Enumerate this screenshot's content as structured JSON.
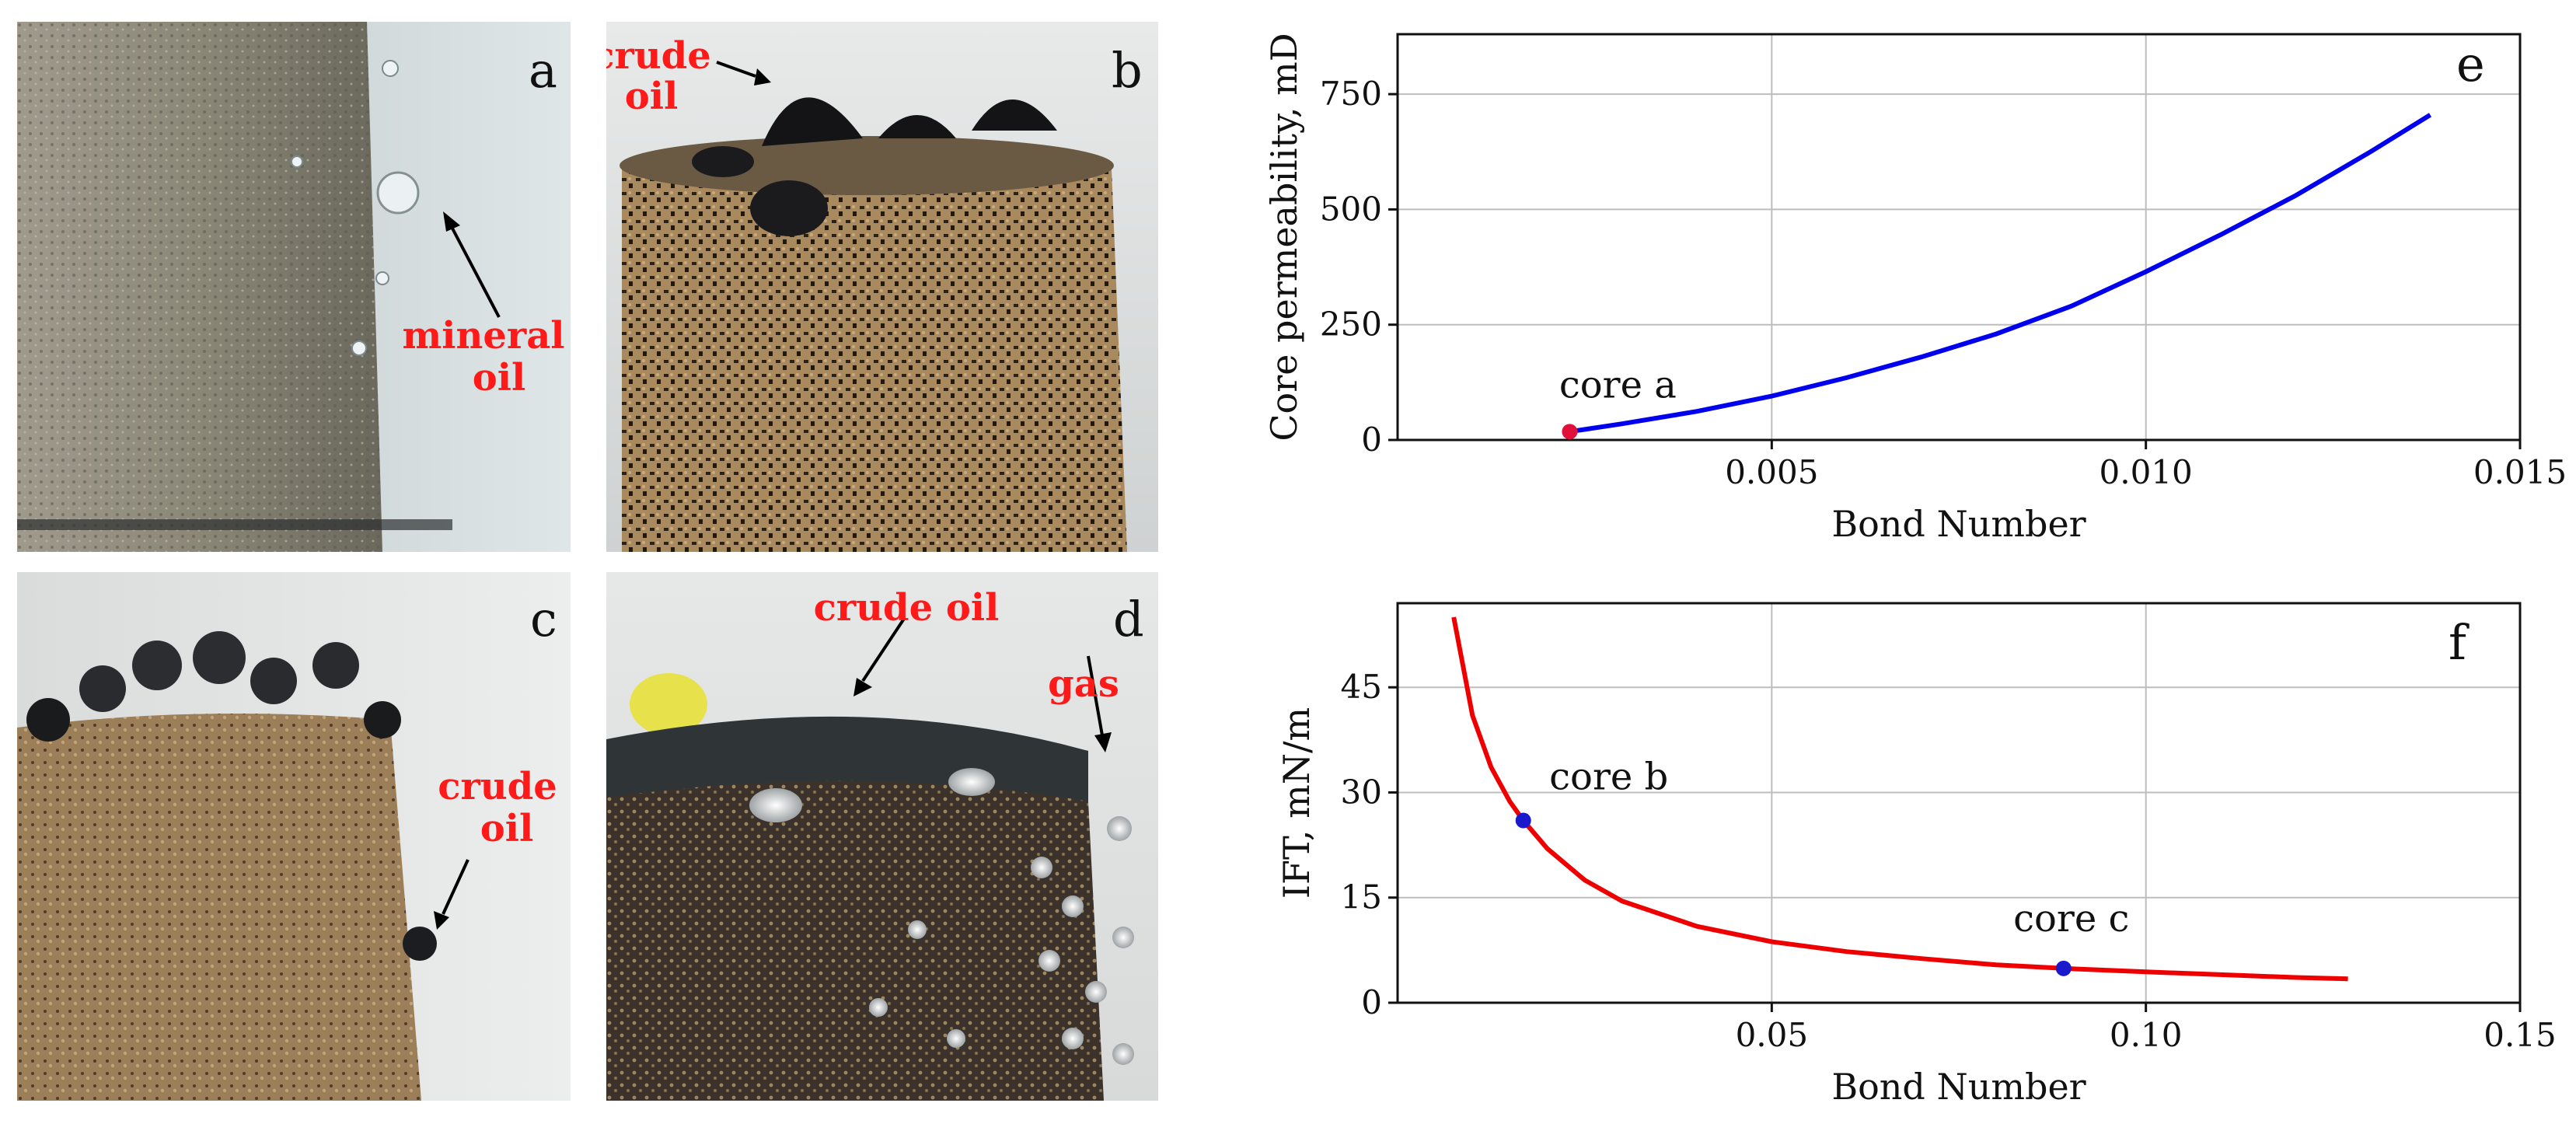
{
  "panels": {
    "a": {
      "letter": "a",
      "callout_line1": "mineral",
      "callout_line2": "oil"
    },
    "b": {
      "letter": "b",
      "callout_line1": "crude",
      "callout_line2": "oil"
    },
    "c": {
      "letter": "c",
      "callout_line1": "crude",
      "callout_line2": "oil"
    },
    "d": {
      "letter": "d",
      "callout_crude": "crude oil",
      "callout_gas": "gas"
    }
  },
  "colors": {
    "callout": "#ff1a1a",
    "series_e": "#0000ee",
    "series_f": "#ee0000",
    "point_e": "#e0103a",
    "point_f": "#1a1acc"
  },
  "chart_data": [
    {
      "panel": "e",
      "type": "line",
      "letter": "e",
      "xlabel": "Bond Number",
      "ylabel": "Core permeability, mD",
      "xlim": [
        0.0,
        0.015
      ],
      "ylim": [
        0,
        880
      ],
      "xticks": [
        0.005,
        0.01,
        0.015
      ],
      "xtick_labels": [
        "0.005",
        "0.010",
        "0.015"
      ],
      "yticks": [
        0,
        250,
        500,
        750
      ],
      "ytick_labels": [
        "0",
        "250",
        "500",
        "750"
      ],
      "series": [
        {
          "name": "permeability",
          "x": [
            0.0023,
            0.003,
            0.004,
            0.005,
            0.006,
            0.007,
            0.008,
            0.009,
            0.01,
            0.011,
            0.012,
            0.013,
            0.0138
          ],
          "y": [
            18,
            35,
            62,
            95,
            135,
            180,
            230,
            290,
            365,
            445,
            530,
            625,
            705
          ]
        }
      ],
      "points": [
        {
          "x": 0.0023,
          "y": 18,
          "label": "core a"
        }
      ]
    },
    {
      "panel": "f",
      "type": "line",
      "letter": "f",
      "xlabel": "Bond Number",
      "ylabel": "IFT, mN/m",
      "xlim": [
        0.0,
        0.15
      ],
      "ylim": [
        0,
        57
      ],
      "xticks": [
        0.05,
        0.1,
        0.15
      ],
      "xtick_labels": [
        "0.05",
        "0.10",
        "0.15"
      ],
      "yticks": [
        0,
        15,
        30,
        45
      ],
      "ytick_labels": [
        "0",
        "15",
        "30",
        "45"
      ],
      "series": [
        {
          "name": "IFT",
          "x": [
            0.0075,
            0.01,
            0.0125,
            0.015,
            0.0168,
            0.02,
            0.025,
            0.03,
            0.04,
            0.05,
            0.06,
            0.07,
            0.08,
            0.089,
            0.1,
            0.11,
            0.12,
            0.127
          ],
          "y": [
            55,
            41,
            33.6,
            28.7,
            26,
            22,
            17.5,
            14.5,
            10.9,
            8.7,
            7.3,
            6.3,
            5.4,
            4.9,
            4.4,
            4.0,
            3.6,
            3.4
          ]
        }
      ],
      "points": [
        {
          "x": 0.0168,
          "y": 26,
          "label": "core b"
        },
        {
          "x": 0.089,
          "y": 4.9,
          "label": "core c"
        }
      ]
    }
  ]
}
